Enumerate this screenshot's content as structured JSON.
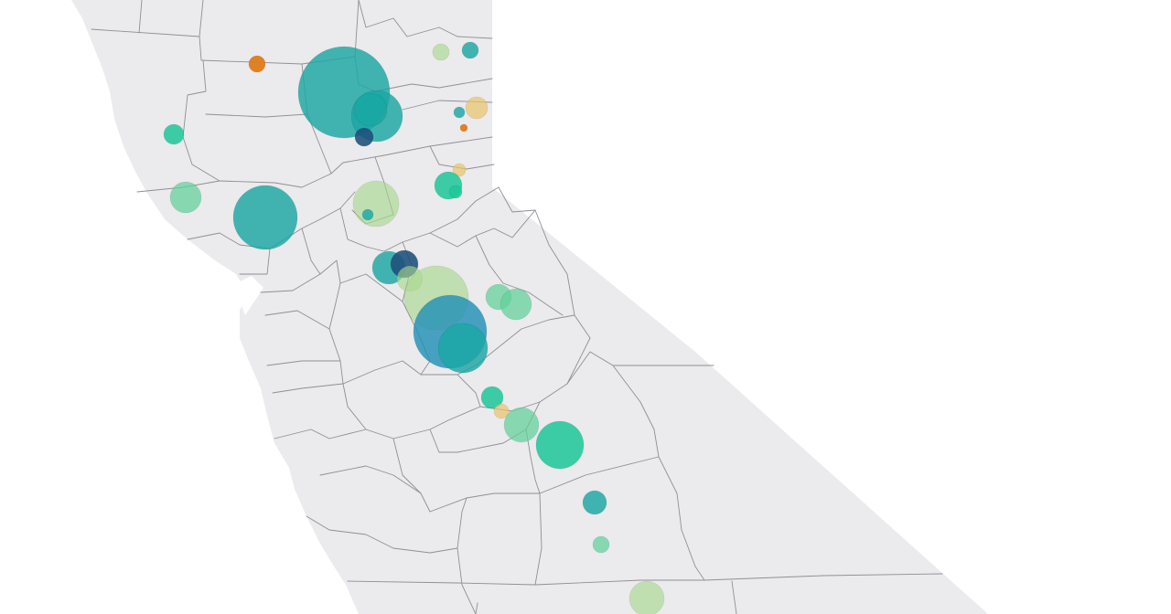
{
  "map": {
    "region": "California",
    "basemap_color": "#ebeaec",
    "boundary_color": "#8f8f95",
    "background_color": "#ffffff"
  },
  "legend_colors": {
    "orange": "#e07b1a",
    "gold": "#e8c46a",
    "light-green": "#a6d98a",
    "mint": "#5fd19a",
    "green": "#1cc79a",
    "teal": "#1aa7a3",
    "blue": "#1d8fb6",
    "dark-navy": "#1c4e7a"
  },
  "bubbles": [
    {
      "id": "shasta",
      "value": 50,
      "color": "teal"
    },
    {
      "id": "oroville-overlap",
      "value": 28,
      "color": "teal"
    },
    {
      "id": "oroville-dark",
      "value": 18,
      "color": "teal"
    },
    {
      "id": "butte-navy",
      "value": 10,
      "color": "dark-navy"
    },
    {
      "id": "trinity-orange",
      "value": 9,
      "color": "orange"
    },
    {
      "id": "plumas-lightgreen",
      "value": 9,
      "color": "light-green"
    },
    {
      "id": "plumas-teal",
      "value": 9,
      "color": "teal"
    },
    {
      "id": "sierra-small-teal",
      "value": 6,
      "color": "teal"
    },
    {
      "id": "sierra-gold",
      "value": 12,
      "color": "gold"
    },
    {
      "id": "sierra-orange",
      "value": 4,
      "color": "orange"
    },
    {
      "id": "mendocino-green",
      "value": 11,
      "color": "green"
    },
    {
      "id": "lake-mint",
      "value": 17,
      "color": "mint"
    },
    {
      "id": "berryessa-teal",
      "value": 35,
      "color": "teal"
    },
    {
      "id": "folsom-lightgreen",
      "value": 25,
      "color": "light-green"
    },
    {
      "id": "folsom-dark",
      "value": 6,
      "color": "teal"
    },
    {
      "id": "eldorado-gold",
      "value": 7,
      "color": "gold"
    },
    {
      "id": "eldorado-green",
      "value": 15,
      "color": "green"
    },
    {
      "id": "eldorado-small",
      "value": 7,
      "color": "green"
    },
    {
      "id": "camanche-teal",
      "value": 18,
      "color": "teal"
    },
    {
      "id": "camanche-navy",
      "value": 15,
      "color": "dark-navy"
    },
    {
      "id": "camanche-lightgreen",
      "value": 14,
      "color": "light-green"
    },
    {
      "id": "tuolumne-mint-a",
      "value": 14,
      "color": "mint"
    },
    {
      "id": "tuolumne-mint-b",
      "value": 17,
      "color": "mint"
    },
    {
      "id": "newmelones-lightgreen",
      "value": 35,
      "color": "light-green"
    },
    {
      "id": "donpedro-blue",
      "value": 40,
      "color": "blue"
    },
    {
      "id": "mcclure-teal",
      "value": 27,
      "color": "teal"
    },
    {
      "id": "madera-teal",
      "value": 12,
      "color": "green"
    },
    {
      "id": "madera-gold",
      "value": 8,
      "color": "gold"
    },
    {
      "id": "millerton-mint",
      "value": 19,
      "color": "mint"
    },
    {
      "id": "pineflat-green",
      "value": 26,
      "color": "green"
    },
    {
      "id": "kaweah-teal",
      "value": 13,
      "color": "teal"
    },
    {
      "id": "success-mint",
      "value": 9,
      "color": "mint"
    },
    {
      "id": "isabella-lightgreen",
      "value": 19,
      "color": "light-green"
    }
  ]
}
